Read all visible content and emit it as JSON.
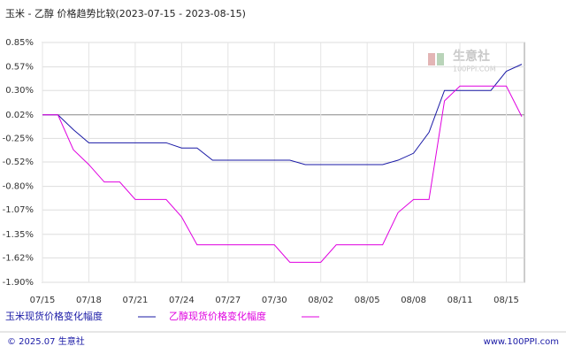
{
  "chart_data": {
    "type": "line",
    "title": "玉米 - 乙醇 价格趋势比较(2023-07-15 - 2023-08-15)",
    "categories": [
      "07/15",
      null,
      null,
      "07/18",
      null,
      null,
      "07/21",
      null,
      null,
      "07/24",
      null,
      null,
      "07/27",
      null,
      null,
      "07/30",
      null,
      null,
      "08/02",
      null,
      null,
      "08/05",
      null,
      null,
      "08/08",
      null,
      null,
      "08/11",
      null,
      null,
      "08/15",
      null
    ],
    "series": [
      {
        "name": "玉米现货价格变化幅度",
        "color": "#1a1aa6",
        "values": [
          0.02,
          0.02,
          -0.15,
          -0.3,
          -0.3,
          -0.3,
          -0.3,
          -0.3,
          -0.3,
          -0.36,
          -0.36,
          -0.5,
          -0.5,
          -0.5,
          -0.5,
          -0.5,
          -0.5,
          -0.55,
          -0.55,
          -0.55,
          -0.55,
          -0.55,
          -0.55,
          -0.5,
          -0.42,
          -0.18,
          0.3,
          0.3,
          0.3,
          0.3,
          0.52,
          0.6
        ]
      },
      {
        "name": "乙醇现货价格变化幅度",
        "color": "#e000e0",
        "values": [
          0.02,
          0.02,
          -0.38,
          -0.55,
          -0.75,
          -0.75,
          -0.95,
          -0.95,
          -0.95,
          -1.15,
          -1.47,
          -1.47,
          -1.47,
          -1.47,
          -1.47,
          -1.47,
          -1.67,
          -1.67,
          -1.67,
          -1.47,
          -1.47,
          -1.47,
          -1.47,
          -1.1,
          -0.95,
          -0.95,
          0.18,
          0.35,
          0.35,
          0.35,
          0.35,
          0.0
        ]
      }
    ],
    "ylim": [
      -1.9,
      0.85
    ],
    "yticks": [
      {
        "value": 0.85,
        "label": "0.85%"
      },
      {
        "value": 0.57,
        "label": "0.57%"
      },
      {
        "value": 0.3,
        "label": "0.30%"
      },
      {
        "value": 0.02,
        "label": "0.02%"
      },
      {
        "value": -0.25,
        "label": "-0.25%"
      },
      {
        "value": -0.52,
        "label": "-0.52%"
      },
      {
        "value": -0.8,
        "label": "-0.80%"
      },
      {
        "value": -1.07,
        "label": "-1.07%"
      },
      {
        "value": -1.35,
        "label": "-1.35%"
      },
      {
        "value": -1.62,
        "label": "-1.62%"
      },
      {
        "value": -1.9,
        "label": "-1.90%"
      }
    ],
    "grid": true,
    "watermark": "生意社",
    "watermark_url": "100PPI.COM",
    "footer_left": "© 2025.07 生意社",
    "footer_right": "www.100PPI.com"
  }
}
